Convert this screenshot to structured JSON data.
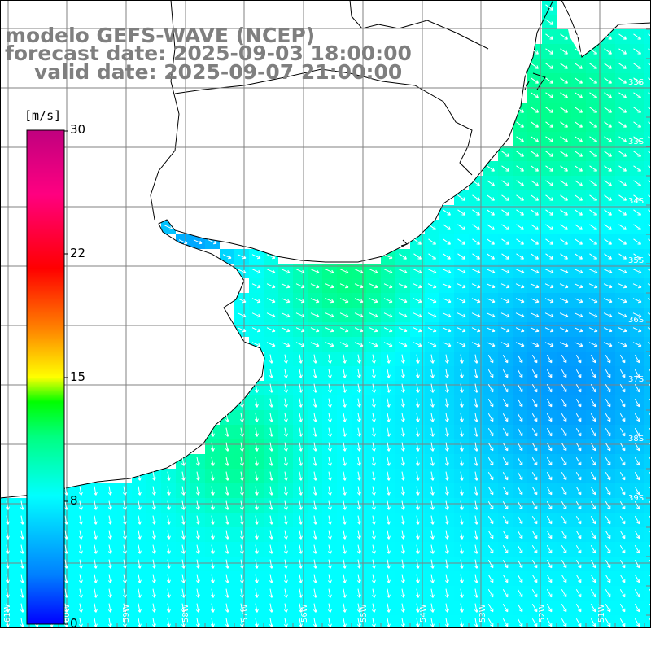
{
  "header": {
    "model": "modelo GEFS-WAVE (NCEP)",
    "forecast": "forecast date: 2025-09-03 18:00:00",
    "valid": "valid date: 2025-09-07 21:00:00"
  },
  "colorbar": {
    "unit": "[m/s]",
    "ticks": [
      "30",
      "22",
      "15",
      "8",
      "0"
    ],
    "gradient": [
      "#0000ff",
      "#0080ff",
      "#00ffff",
      "#00ff80",
      "#00ff00",
      "#80ff00",
      "#ffff00",
      "#ff8000",
      "#ff0000",
      "#ff0080",
      "#c0007f"
    ]
  },
  "map": {
    "land_color": "#ffffff",
    "coast_color": "#000000",
    "grid_color": "#808080",
    "arrow_color": "#ffffff",
    "lon_labels": [
      "61W",
      "60W",
      "59W",
      "58W",
      "57W",
      "56W",
      "55W",
      "54W",
      "53W",
      "52W",
      "51W"
    ],
    "lat_labels": [
      "33S",
      "33S",
      "34S",
      "35S",
      "36S",
      "37S",
      "38S",
      "39S"
    ]
  }
}
